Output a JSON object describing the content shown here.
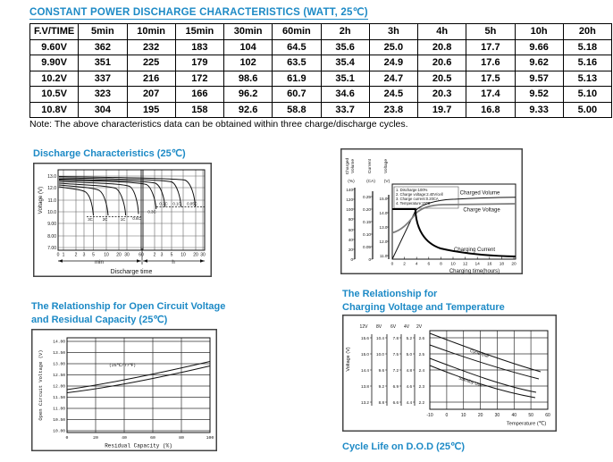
{
  "page": {
    "title": "CONSTANT POWER DISCHARGE CHARACTERISTICS (WATT, 25℃)",
    "note": "Note: The above characteristics data can be obtained within three charge/discharge cycles.",
    "cycle_life_title": "Cycle Life on D.O.D (25℃)",
    "accent_color": "#1d8ac6"
  },
  "table": {
    "headers": [
      "F.V/TIME",
      "5min",
      "10min",
      "15min",
      "30min",
      "60min",
      "2h",
      "3h",
      "4h",
      "5h",
      "10h",
      "20h"
    ],
    "rows": [
      [
        "9.60V",
        "362",
        "232",
        "183",
        "104",
        "64.5",
        "35.6",
        "25.0",
        "20.8",
        "17.7",
        "9.66",
        "5.18"
      ],
      [
        "9.90V",
        "351",
        "225",
        "179",
        "102",
        "63.5",
        "35.4",
        "24.9",
        "20.6",
        "17.6",
        "9.62",
        "5.16"
      ],
      [
        "10.2V",
        "337",
        "216",
        "172",
        "98.6",
        "61.9",
        "35.1",
        "24.7",
        "20.5",
        "17.5",
        "9.57",
        "5.13"
      ],
      [
        "10.5V",
        "323",
        "207",
        "166",
        "96.2",
        "60.7",
        "34.6",
        "24.5",
        "20.3",
        "17.4",
        "9.52",
        "5.10"
      ],
      [
        "10.8V",
        "304",
        "195",
        "158",
        "92.6",
        "58.8",
        "33.7",
        "23.8",
        "19.7",
        "16.8",
        "9.33",
        "5.00"
      ]
    ]
  },
  "chart_data": [
    {
      "type": "line",
      "title": "Discharge Characteristics (25℃)",
      "ylabel": "Voltage (V)",
      "xlabel": "Discharge time",
      "x_unit_min": "min",
      "x_unit_h": "h",
      "y_ticks": [
        "13.0",
        "12.0",
        "11.0",
        "10.0",
        "9.00",
        "8.00",
        "7.00"
      ],
      "x_ticks_min": [
        "0",
        "1",
        "2",
        "3",
        "5",
        "10",
        "20",
        "30",
        "60"
      ],
      "x_ticks_h": [
        "2",
        "3",
        "5",
        "10",
        "20",
        "30"
      ],
      "series_labels": [
        "3C",
        "2C",
        "1C",
        "0.6C",
        "0.3C",
        "0.2C",
        "0.1C",
        "0.05C"
      ],
      "series": [
        {
          "name": "3C",
          "approx_end": "5min",
          "cutoff_v": 9.6
        },
        {
          "name": "2C",
          "approx_end": "11min",
          "cutoff_v": 9.6
        },
        {
          "name": "1C",
          "approx_end": "28min",
          "cutoff_v": 9.6
        },
        {
          "name": "0.6C",
          "approx_end": "55min",
          "cutoff_v": 9.8
        },
        {
          "name": "0.3C",
          "approx_end": "2.2h",
          "cutoff_v": 10.2
        },
        {
          "name": "0.2C",
          "approx_end": "3.5h",
          "cutoff_v": 10.4
        },
        {
          "name": "0.1C",
          "approx_end": "9h",
          "cutoff_v": 10.4
        },
        {
          "name": "0.05C",
          "approx_end": "19h",
          "cutoff_v": 10.5
        }
      ]
    },
    {
      "type": "line",
      "axis_names": [
        "Charged",
        "Volume",
        "Current",
        "Voltage"
      ],
      "axis_units": [
        "(%)",
        "(CA)",
        "(V)"
      ],
      "volume_ticks": [
        "140",
        "120",
        "100",
        "80",
        "60",
        "40",
        "20",
        "0"
      ],
      "current_ticks": [
        "0.25",
        "0.20",
        "0.15",
        "0.10",
        "0.05",
        "0"
      ],
      "voltage_ticks": [
        "15.0",
        "14.0",
        "13.0",
        "12.0",
        "11.0"
      ],
      "x_ticks": [
        "0",
        "2",
        "4",
        "6",
        "8",
        "10",
        "12",
        "14",
        "16",
        "18",
        "20"
      ],
      "xlabel": "Charging time(hours)",
      "conditions": [
        "1. Discharge:100%",
        "2. Charge voltage:2.40V/cell",
        "3. Charge current:0.20CA",
        "4. Temperature:25℃"
      ],
      "series_labels": [
        "Charged Volume",
        "Charge Voltage",
        "Charging Current"
      ]
    },
    {
      "type": "line",
      "title_lines": [
        "The Relationship for Open Circuit Voltage",
        "and Residual Capacity (25℃)"
      ],
      "ylabel": "Open Circuit Voltage (V)",
      "xlabel": "Residual Capacity (%)",
      "annotation": "(25℃/77℉)",
      "y_ticks": [
        "14.00",
        "13.50",
        "13.00",
        "12.50",
        "12.00",
        "11.50",
        "11.00",
        "10.50",
        "10.00"
      ],
      "x_ticks": [
        "0",
        "20",
        "40",
        "60",
        "80",
        "100"
      ],
      "series": [
        {
          "name": "upper",
          "points": [
            [
              0,
              11.85
            ],
            [
              100,
              13.1
            ]
          ]
        },
        {
          "name": "lower",
          "points": [
            [
              0,
              11.7
            ],
            [
              100,
              12.9
            ]
          ]
        }
      ]
    },
    {
      "type": "line",
      "title_lines": [
        "The Relationship for",
        "Charging Voltage and Temperature"
      ],
      "ylabel": "Voltage (V)",
      "xlabel": "Temperature (℃)",
      "scale_headers": [
        "12V",
        "8V",
        "6V",
        "4V",
        "2V"
      ],
      "scales": [
        [
          "15.6",
          "15.0",
          "14.4",
          "13.8",
          "13.2"
        ],
        [
          "10.4",
          "10.0",
          "9.6",
          "9.2",
          "8.8"
        ],
        [
          "7.8",
          "7.5",
          "7.2",
          "6.9",
          "6.6"
        ],
        [
          "5.2",
          "5.0",
          "4.8",
          "4.6",
          "4.4"
        ],
        [
          "2.6",
          "2.5",
          "2.4",
          "2.3",
          "2.2"
        ]
      ],
      "x_ticks": [
        "-10",
        "0",
        "10",
        "20",
        "30",
        "40",
        "50",
        "60"
      ],
      "band_labels": [
        "Cycle Use",
        "Standby Use"
      ],
      "bands": [
        {
          "name": "Cycle Use",
          "approx_2v_points": [
            [
              -10,
              2.62
            ],
            [
              50,
              2.38
            ]
          ]
        },
        {
          "name": "Standby Use",
          "approx_2v_points": [
            [
              -10,
              2.45
            ],
            [
              50,
              2.25
            ]
          ]
        }
      ]
    }
  ]
}
